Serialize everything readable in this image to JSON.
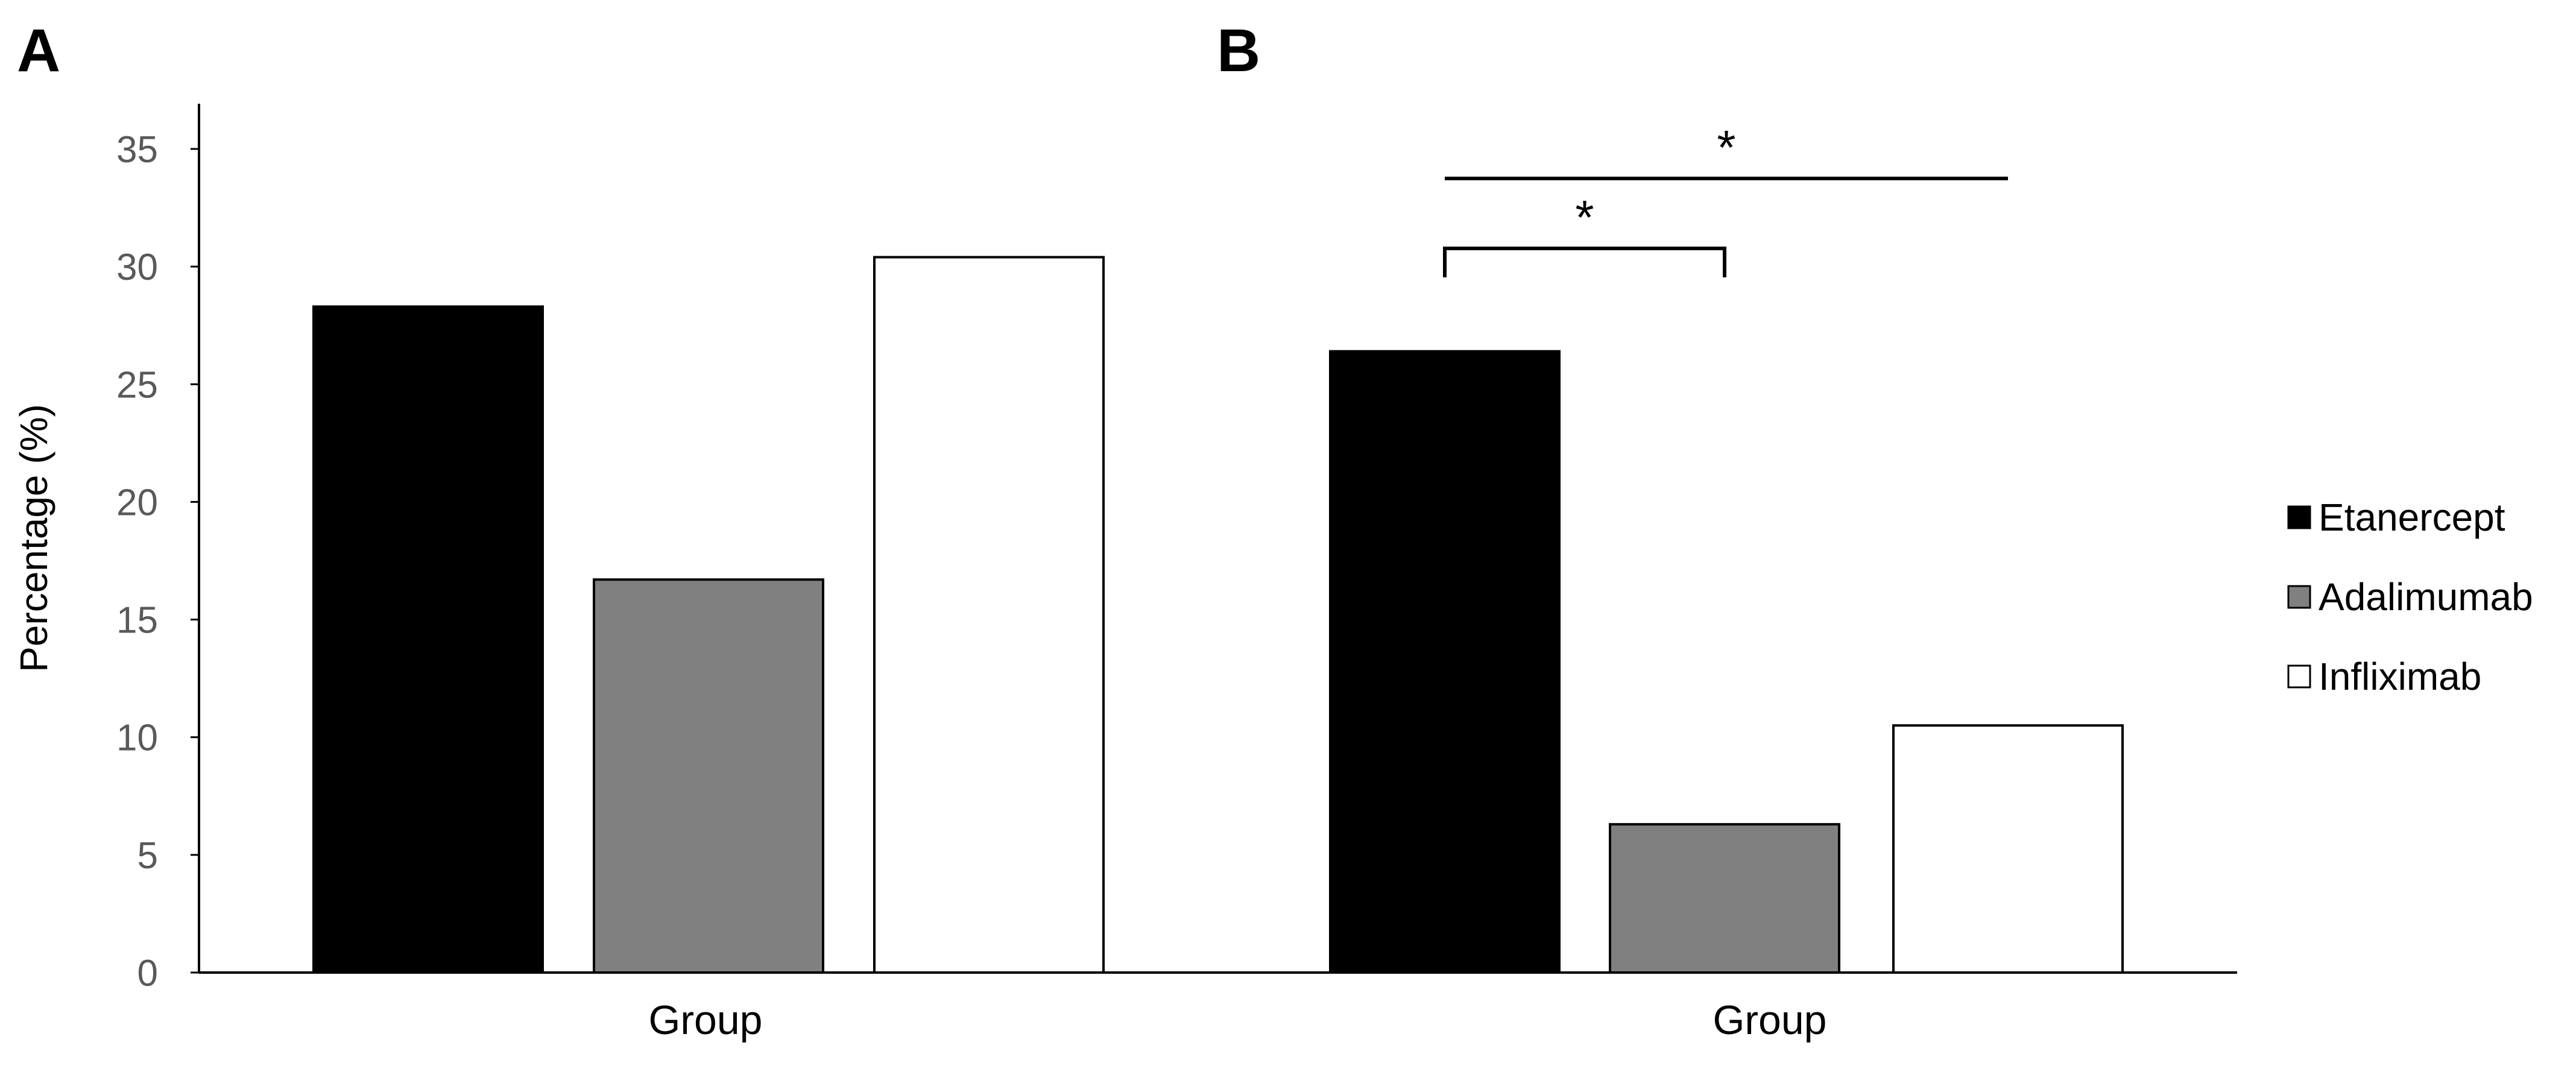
{
  "chart_data": {
    "type": "bar",
    "panels": [
      {
        "label": "A",
        "categories": [
          "Group"
        ],
        "series": [
          {
            "name": "Etanercept",
            "values": [
              28.3
            ]
          },
          {
            "name": "Adalimumab",
            "values": [
              16.7
            ]
          },
          {
            "name": "Infliximab",
            "values": [
              30.4
            ]
          }
        ],
        "significance": []
      },
      {
        "label": "B",
        "categories": [
          "Group"
        ],
        "series": [
          {
            "name": "Etanercept",
            "values": [
              26.4
            ]
          },
          {
            "name": "Adalimumab",
            "values": [
              6.3
            ]
          },
          {
            "name": "Infliximab",
            "values": [
              10.5
            ]
          }
        ],
        "significance": [
          {
            "from": "Etanercept",
            "to": "Adalimumab",
            "label": "*"
          },
          {
            "from": "Etanercept",
            "to": "Infliximab",
            "label": "*"
          }
        ]
      }
    ],
    "ylabel": "Percentage (%)",
    "ylim": [
      0,
      35
    ],
    "yticks": [
      0,
      5,
      10,
      15,
      20,
      25,
      30,
      35
    ],
    "grid": false,
    "legend": {
      "placement": "right",
      "entries": [
        "Etanercept",
        "Adalimumab",
        "Infliximab"
      ]
    },
    "series_colors": {
      "Etanercept": "#000000",
      "Adalimumab": "#808080",
      "Infliximab": "#ffffff"
    }
  }
}
